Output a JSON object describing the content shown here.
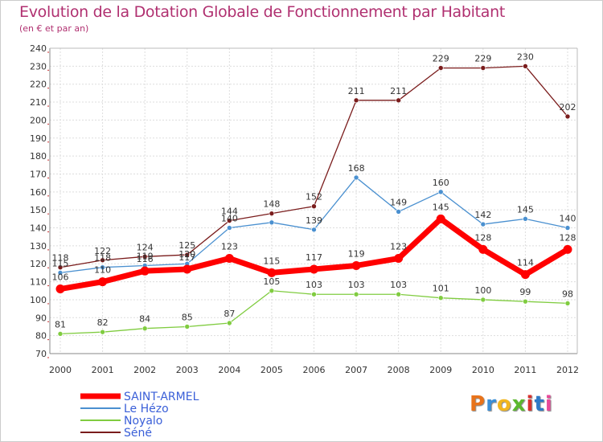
{
  "header": {
    "title": "Evolution de la Dotation Globale de Fonctionnement par Habitant",
    "subtitle": "(en € et par an)"
  },
  "logo": {
    "text": "Proxiti",
    "colors": [
      "#e8731a",
      "#3a8fd8",
      "#f2b61f",
      "#5cb82e",
      "#d8322f",
      "#2d79c7",
      "#e84a9a"
    ]
  },
  "chart_data": {
    "type": "line",
    "title": "Evolution de la Dotation Globale de Fonctionnement par Habitant",
    "subtitle": "(en € et par an)",
    "xlabel": "",
    "ylabel": "",
    "x": [
      "2000",
      "2001",
      "2002",
      "2003",
      "2004",
      "2005",
      "2006",
      "2007",
      "2008",
      "2009",
      "2010",
      "2011",
      "2012"
    ],
    "ylim": [
      70,
      240
    ],
    "ytick_step": 10,
    "grid": true,
    "legend_position": "bottom-left",
    "series": [
      {
        "name": "SAINT-ARMEL",
        "color": "#ff0000",
        "values": [
          106,
          110,
          116,
          117,
          123,
          115,
          117,
          119,
          123,
          145,
          128,
          114,
          128
        ]
      },
      {
        "name": "Le Hézo",
        "color": "#4a90d0",
        "values": [
          115,
          118,
          119,
          120,
          140,
          143,
          139,
          168,
          149,
          160,
          142,
          145,
          140
        ]
      },
      {
        "name": "Noyalo",
        "color": "#80cc40",
        "values": [
          81,
          82,
          84,
          85,
          87,
          105,
          103,
          103,
          103,
          101,
          100,
          99,
          98
        ]
      },
      {
        "name": "Séné",
        "color": "#7a1c1c",
        "values": [
          118,
          122,
          124,
          125,
          144,
          148,
          152,
          211,
          211,
          229,
          229,
          230,
          202
        ]
      }
    ],
    "data_labels": {
      "SAINT-ARMEL": [
        "106",
        "110",
        "116",
        "117",
        "123",
        "115",
        "117",
        "119",
        "123",
        "145",
        "128",
        "114",
        "128"
      ],
      "Le Hézo": [
        "115",
        "118",
        "119",
        "120",
        "140",
        "",
        "139",
        "168",
        "149",
        "160",
        "142",
        "145",
        "140"
      ],
      "Noyalo": [
        "81",
        "82",
        "84",
        "85",
        "87",
        "105",
        "103",
        "103",
        "103",
        "101",
        "100",
        "99",
        "98"
      ],
      "Séné": [
        "118",
        "122",
        "124",
        "125",
        "144",
        "148",
        "152",
        "211",
        "211",
        "229",
        "229",
        "230",
        "202"
      ]
    }
  }
}
